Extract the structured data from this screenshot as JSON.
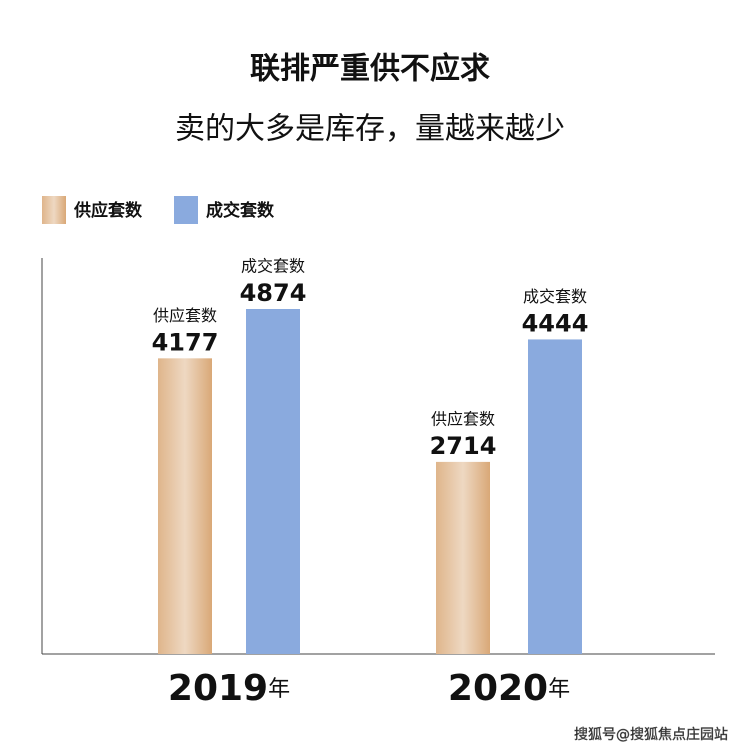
{
  "chart_data": {
    "type": "bar",
    "title": "联排严重供不应求",
    "subtitle": "卖的大多是库存，量越来越少",
    "categories": [
      "2019年",
      "2020年"
    ],
    "series": [
      {
        "name": "供应套数",
        "color": "#d9a877",
        "values": [
          4177,
          2714
        ]
      },
      {
        "name": "成交套数",
        "color": "#8aaade",
        "values": [
          4874,
          4444
        ]
      }
    ],
    "watermark": "搜狐号@搜狐焦点庄园站"
  }
}
